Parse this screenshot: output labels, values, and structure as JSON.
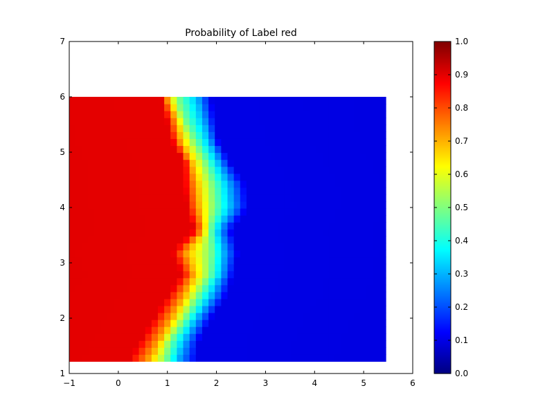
{
  "chart_data": {
    "type": "heatmap",
    "title": "Probability of Label red",
    "xlabel": "",
    "ylabel": "",
    "xlim": [
      -1,
      6
    ],
    "ylim": [
      1,
      7
    ],
    "x_ticks": [
      "−1",
      "0",
      "1",
      "2",
      "3",
      "4",
      "5",
      "6"
    ],
    "y_ticks": [
      "1",
      "2",
      "3",
      "4",
      "5",
      "6",
      "7"
    ],
    "colorbar": {
      "colormap": "jet",
      "range": [
        0.0,
        1.0
      ],
      "ticks": [
        "0.0",
        "0.1",
        "0.2",
        "0.3",
        "0.4",
        "0.5",
        "0.6",
        "0.7",
        "0.8",
        "0.9",
        "1.0"
      ]
    },
    "grid": {
      "x_range": [
        -1.0,
        5.45
      ],
      "y_range": [
        1.22,
        6.0
      ],
      "columns": 50,
      "rows": 38
    },
    "boundary_profile": [
      {
        "y": 6.0,
        "p09": 0.85,
        "p07": 1.0,
        "p05": 1.2,
        "p03": 1.6,
        "p01": 1.9
      },
      {
        "y": 5.6,
        "p09": 0.98,
        "p07": 1.18,
        "p05": 1.33,
        "p03": 1.72,
        "p01": 1.97
      },
      {
        "y": 5.2,
        "p09": 1.1,
        "p07": 1.28,
        "p05": 1.55,
        "p03": 1.85,
        "p01": 2.05
      },
      {
        "y": 4.8,
        "p09": 1.35,
        "p07": 1.5,
        "p05": 1.78,
        "p03": 2.05,
        "p01": 2.3
      },
      {
        "y": 4.4,
        "p09": 1.35,
        "p07": 1.6,
        "p05": 1.92,
        "p03": 2.25,
        "p01": 2.6
      },
      {
        "y": 4.0,
        "p09": 1.4,
        "p07": 1.65,
        "p05": 1.95,
        "p03": 2.3,
        "p01": 2.65
      },
      {
        "y": 3.6,
        "p09": 1.55,
        "p07": 1.75,
        "p05": 1.85,
        "p03": 2.05,
        "p01": 2.3
      },
      {
        "y": 3.2,
        "p09": 1.1,
        "p07": 1.4,
        "p05": 1.88,
        "p03": 2.15,
        "p01": 2.45
      },
      {
        "y": 2.8,
        "p09": 1.3,
        "p07": 1.55,
        "p05": 1.85,
        "p03": 2.1,
        "p01": 2.35
      },
      {
        "y": 2.4,
        "p09": 1.0,
        "p07": 1.35,
        "p05": 1.6,
        "p03": 1.9,
        "p01": 2.2
      },
      {
        "y": 2.0,
        "p09": 0.72,
        "p07": 1.1,
        "p05": 1.35,
        "p03": 1.6,
        "p01": 1.9
      },
      {
        "y": 1.6,
        "p09": 0.45,
        "p07": 0.85,
        "p05": 1.05,
        "p03": 1.35,
        "p01": 1.65
      },
      {
        "y": 1.22,
        "p09": 0.2,
        "p07": 0.62,
        "p05": 0.95,
        "p03": 1.2,
        "p01": 1.6
      }
    ]
  }
}
